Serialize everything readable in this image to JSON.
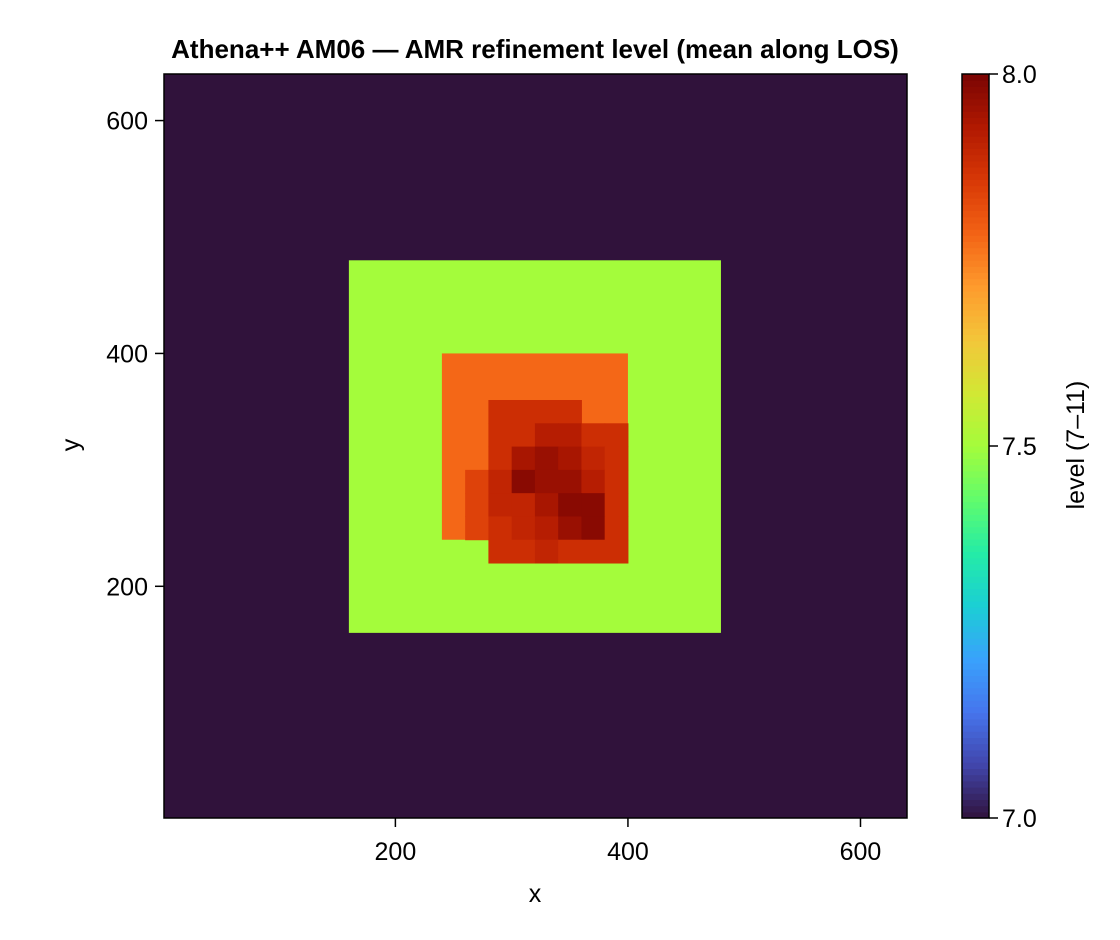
{
  "chart_data": {
    "type": "heatmap",
    "title": "Athena++ AM06 — AMR refinement level (mean along LOS)",
    "xlabel": "x",
    "ylabel": "y",
    "xlim": [
      1,
      640
    ],
    "ylim": [
      1,
      640
    ],
    "x_ticks": [
      200,
      400,
      600
    ],
    "y_ticks": [
      200,
      400,
      600
    ],
    "grid": false,
    "colorbar": {
      "label": "level (7–11)",
      "range": [
        7.0,
        8.0
      ],
      "ticks": [
        "7.0",
        "7.5",
        "8.0"
      ],
      "colormap": "turbo"
    },
    "background_level": 7.0,
    "cell_size": 20,
    "regions": [
      {
        "x0": 160,
        "x1": 480,
        "y0": 160,
        "y1": 480,
        "level": 7.5
      },
      {
        "x0": 240,
        "x1": 400,
        "y0": 240,
        "y1": 400,
        "level": 7.78
      }
    ],
    "cells": [
      {
        "x": 280,
        "y": 340,
        "level": 7.88
      },
      {
        "x": 300,
        "y": 340,
        "level": 7.88
      },
      {
        "x": 320,
        "y": 340,
        "level": 7.88
      },
      {
        "x": 340,
        "y": 340,
        "level": 7.88
      },
      {
        "x": 280,
        "y": 320,
        "level": 7.88
      },
      {
        "x": 300,
        "y": 320,
        "level": 7.88
      },
      {
        "x": 320,
        "y": 320,
        "level": 7.92
      },
      {
        "x": 340,
        "y": 320,
        "level": 7.92
      },
      {
        "x": 360,
        "y": 320,
        "level": 7.88
      },
      {
        "x": 380,
        "y": 320,
        "level": 7.88
      },
      {
        "x": 280,
        "y": 300,
        "level": 7.88
      },
      {
        "x": 300,
        "y": 300,
        "level": 7.94
      },
      {
        "x": 320,
        "y": 300,
        "level": 7.96
      },
      {
        "x": 340,
        "y": 300,
        "level": 7.94
      },
      {
        "x": 360,
        "y": 300,
        "level": 7.9
      },
      {
        "x": 380,
        "y": 300,
        "level": 7.88
      },
      {
        "x": 260,
        "y": 280,
        "level": 7.84
      },
      {
        "x": 280,
        "y": 280,
        "level": 7.9
      },
      {
        "x": 300,
        "y": 280,
        "level": 7.98
      },
      {
        "x": 320,
        "y": 280,
        "level": 7.96
      },
      {
        "x": 340,
        "y": 280,
        "level": 7.96
      },
      {
        "x": 360,
        "y": 280,
        "level": 7.92
      },
      {
        "x": 380,
        "y": 280,
        "level": 7.88
      },
      {
        "x": 260,
        "y": 260,
        "level": 7.84
      },
      {
        "x": 280,
        "y": 260,
        "level": 7.9
      },
      {
        "x": 300,
        "y": 260,
        "level": 7.9
      },
      {
        "x": 320,
        "y": 260,
        "level": 7.94
      },
      {
        "x": 340,
        "y": 260,
        "level": 7.98
      },
      {
        "x": 360,
        "y": 260,
        "level": 7.98
      },
      {
        "x": 380,
        "y": 260,
        "level": 7.88
      },
      {
        "x": 260,
        "y": 240,
        "level": 7.84
      },
      {
        "x": 280,
        "y": 240,
        "level": 7.88
      },
      {
        "x": 300,
        "y": 240,
        "level": 7.9
      },
      {
        "x": 320,
        "y": 240,
        "level": 7.92
      },
      {
        "x": 340,
        "y": 240,
        "level": 7.96
      },
      {
        "x": 360,
        "y": 240,
        "level": 7.98
      },
      {
        "x": 380,
        "y": 240,
        "level": 7.88
      },
      {
        "x": 280,
        "y": 220,
        "level": 7.88
      },
      {
        "x": 300,
        "y": 220,
        "level": 7.88
      },
      {
        "x": 320,
        "y": 220,
        "level": 7.9
      },
      {
        "x": 340,
        "y": 220,
        "level": 7.88
      },
      {
        "x": 360,
        "y": 220,
        "level": 7.88
      },
      {
        "x": 380,
        "y": 220,
        "level": 7.88
      }
    ]
  }
}
